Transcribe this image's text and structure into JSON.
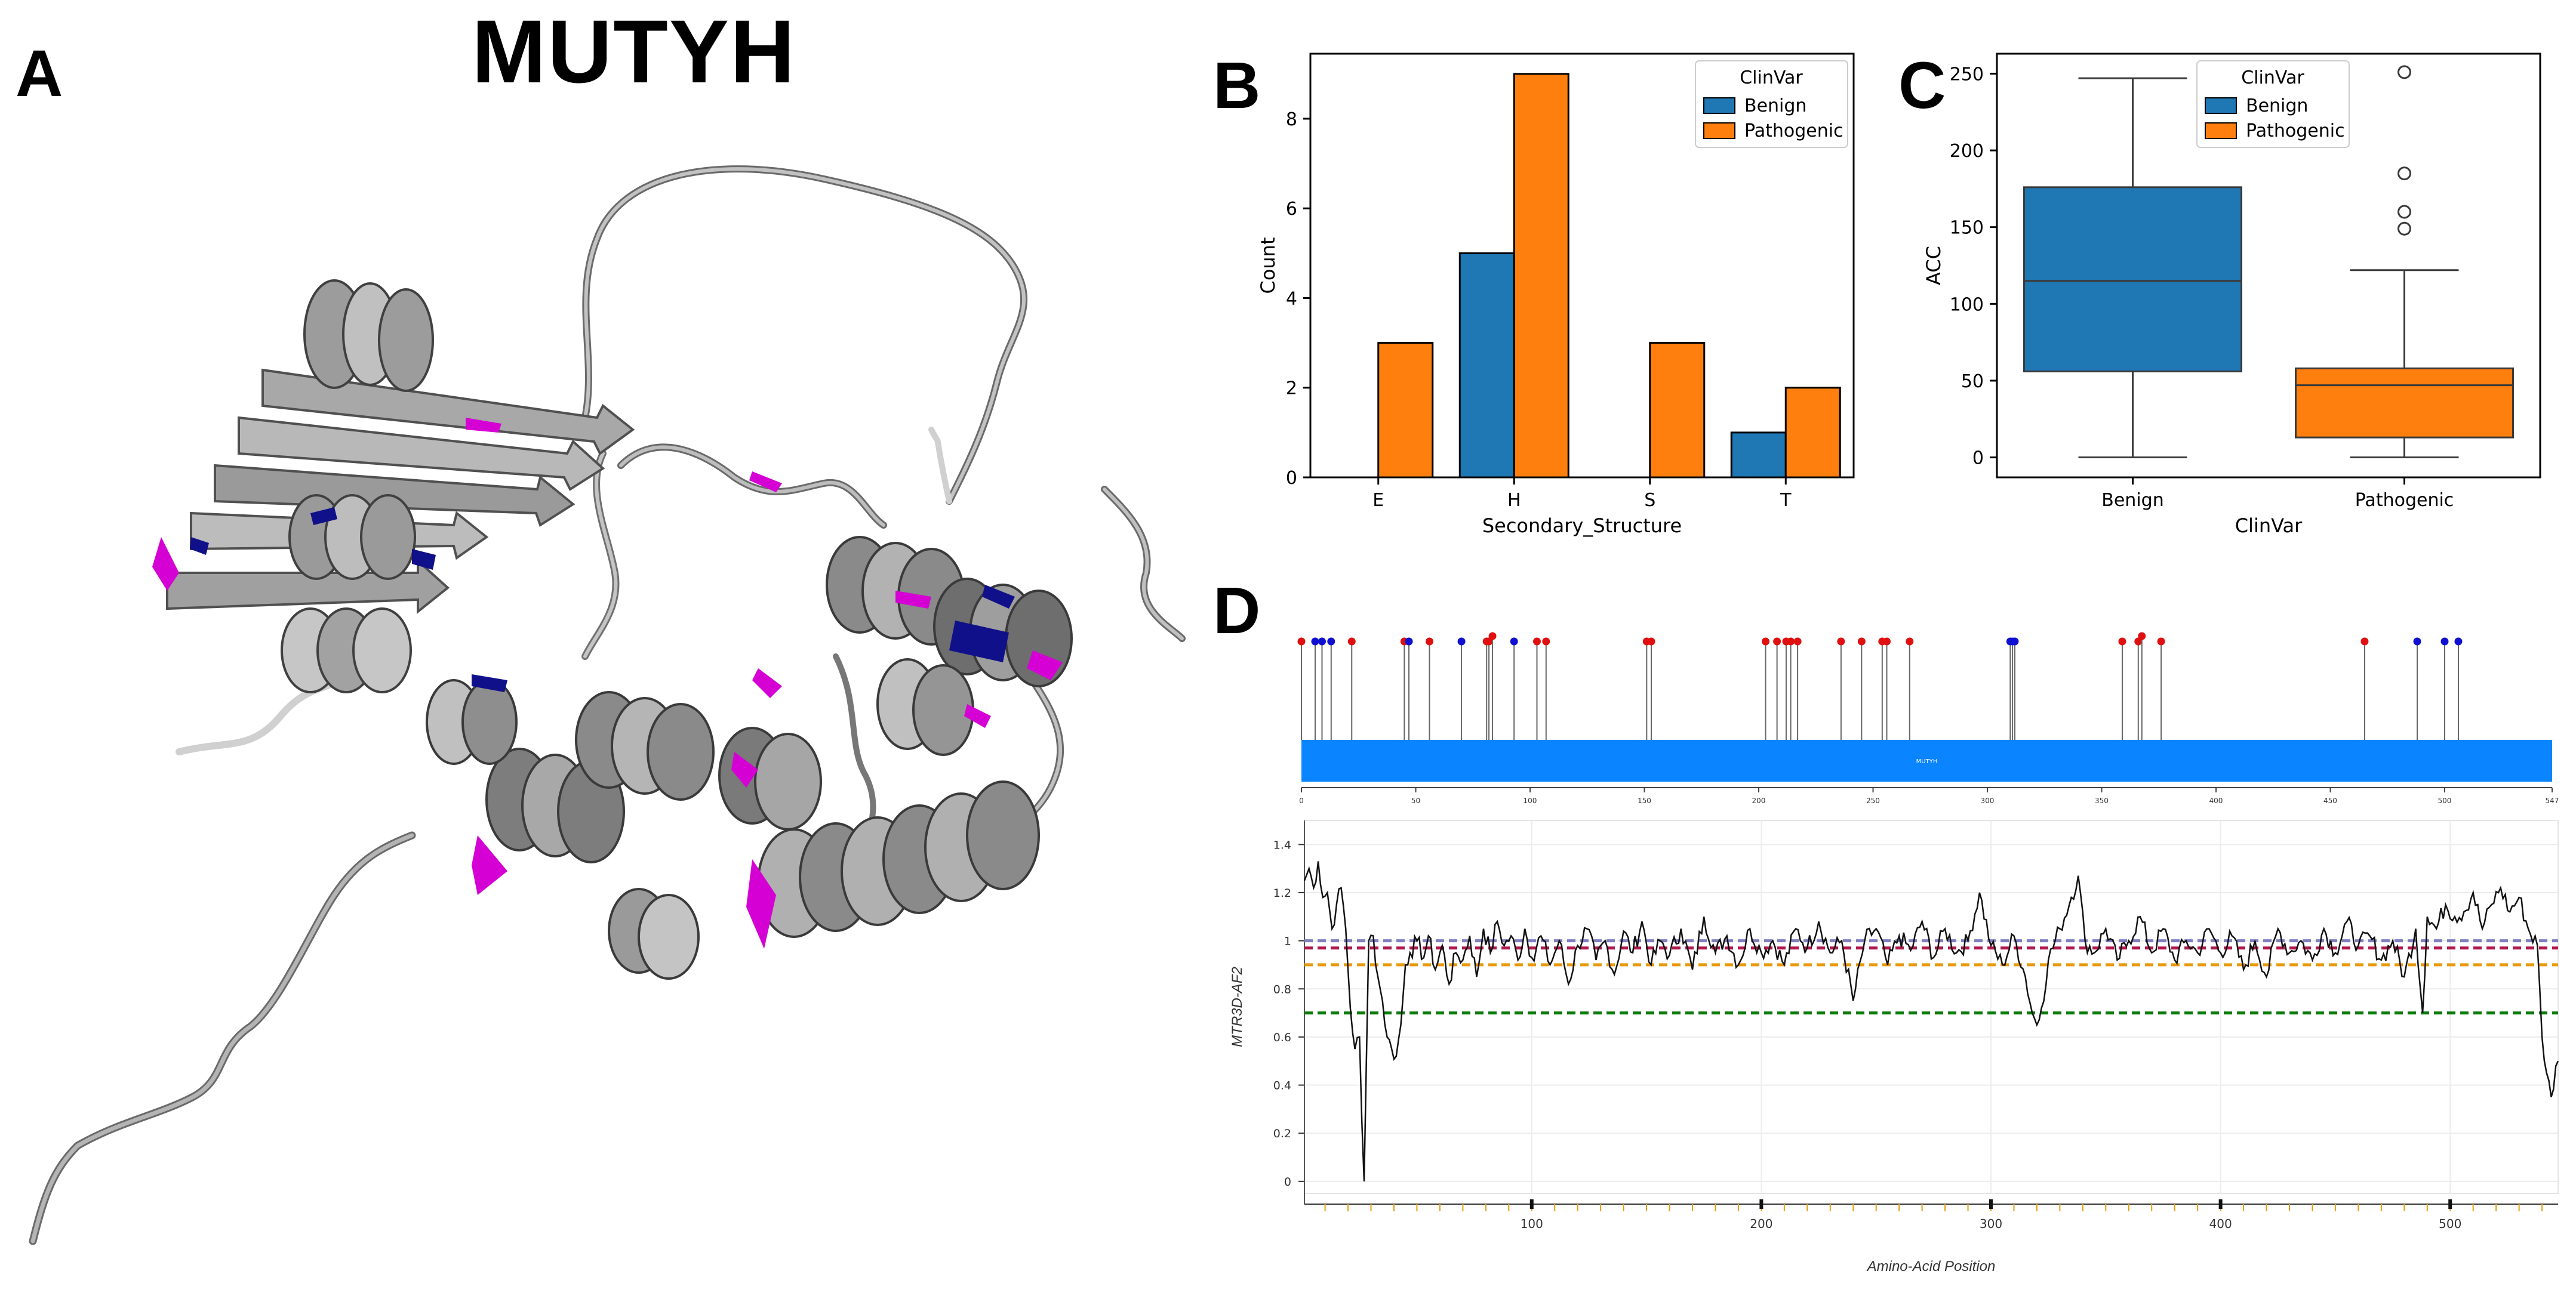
{
  "panel_labels": {
    "a": "A",
    "b": "B",
    "c": "C",
    "d": "D"
  },
  "protein": {
    "title": "MUTYH"
  },
  "colors": {
    "benign": "#1f77b4",
    "pathogenic": "#ff7f0e",
    "lollipop_benign": "#1010d0",
    "lollipop_pathogenic": "#e01010",
    "domain_bar": "#0a84ff",
    "highlight_pathogenic": "#d400d4",
    "highlight_benign": "#10108a"
  },
  "chart_data": [
    {
      "id": "B",
      "type": "bar",
      "title": "",
      "xlabel": "Secondary_Structure",
      "ylabel": "Count",
      "categories": [
        "E",
        "H",
        "S",
        "T"
      ],
      "series": [
        {
          "name": "Benign",
          "values": [
            0,
            5,
            0,
            1
          ]
        },
        {
          "name": "Pathogenic",
          "values": [
            3,
            9,
            3,
            2
          ]
        }
      ],
      "ylim": [
        0,
        9.45
      ],
      "yticks": [
        "0",
        "2",
        "4",
        "6",
        "8"
      ],
      "legend": {
        "title": "ClinVar",
        "position": "top-right"
      }
    },
    {
      "id": "C",
      "type": "box",
      "title": "",
      "xlabel": "ClinVar",
      "ylabel": "ACC",
      "categories": [
        "Benign",
        "Pathogenic"
      ],
      "boxes": [
        {
          "name": "Benign",
          "whisker_low": 0,
          "q1": 56,
          "median": 115,
          "q3": 176,
          "whisker_high": 247,
          "outliers": []
        },
        {
          "name": "Pathogenic",
          "whisker_low": 0,
          "q1": 13,
          "median": 47,
          "q3": 58,
          "whisker_high": 122,
          "outliers": [
            149,
            160,
            185,
            251
          ]
        }
      ],
      "ylim": [
        -13,
        263
      ],
      "yticks": [
        "0",
        "50",
        "100",
        "150",
        "200",
        "250"
      ],
      "legend": {
        "title": "ClinVar",
        "entries": [
          "Benign",
          "Pathogenic"
        ],
        "position": "top-center"
      }
    },
    {
      "id": "D-top",
      "type": "lollipop",
      "xlim": [
        0,
        547
      ],
      "xticks": [
        "0",
        "50",
        "100",
        "150",
        "200",
        "250",
        "300",
        "350",
        "400",
        "450",
        "500",
        "547"
      ],
      "domain_label": "MUTYH",
      "benign_positions": [
        6,
        9,
        13,
        47,
        70,
        93,
        310,
        311,
        312,
        488,
        500,
        506
      ],
      "pathogenic_positions": [
        0,
        22,
        45,
        56,
        81,
        82,
        82,
        103,
        107,
        151,
        153,
        203,
        208,
        212,
        214,
        217,
        236,
        245,
        254,
        256,
        266,
        359,
        366,
        366,
        376,
        465
      ]
    },
    {
      "id": "D-bottom",
      "type": "line",
      "xlabel": "Amino-Acid Position",
      "ylabel": "MTR3D-AF2",
      "xlim": [
        1,
        547
      ],
      "ylim": [
        -0.05,
        1.5
      ],
      "xticks": [
        "100",
        "200",
        "300",
        "400",
        "500"
      ],
      "yticks": [
        "0",
        "0.2",
        "0.4",
        "0.6",
        "0.8",
        "1",
        "1.2",
        "1.4"
      ],
      "hlines": [
        {
          "y": 1.0,
          "color": "#8080c0"
        },
        {
          "y": 0.97,
          "color": "#b0184a"
        },
        {
          "y": 0.9,
          "color": "#e69a0c"
        },
        {
          "y": 0.7,
          "color": "#0a7a0a"
        }
      ],
      "keypoints": [
        [
          1,
          1.25
        ],
        [
          3,
          1.3
        ],
        [
          5,
          1.22
        ],
        [
          7,
          1.33
        ],
        [
          9,
          1.18
        ],
        [
          11,
          1.2
        ],
        [
          13,
          1.05
        ],
        [
          15,
          1.15
        ],
        [
          17,
          1.22
        ],
        [
          19,
          1.05
        ],
        [
          21,
          0.72
        ],
        [
          23,
          0.55
        ],
        [
          25,
          0.6
        ],
        [
          26,
          0.25
        ],
        [
          27,
          0.0
        ],
        [
          28,
          0.5
        ],
        [
          29,
          1.0
        ],
        [
          31,
          1.02
        ],
        [
          33,
          0.85
        ],
        [
          35,
          0.75
        ],
        [
          37,
          0.6
        ],
        [
          39,
          0.55
        ],
        [
          41,
          0.52
        ],
        [
          43,
          0.65
        ],
        [
          45,
          0.9
        ],
        [
          47,
          0.95
        ],
        [
          50,
          1.0
        ],
        [
          53,
          0.93
        ],
        [
          55,
          1.02
        ],
        [
          58,
          0.88
        ],
        [
          61,
          0.98
        ],
        [
          64,
          0.82
        ],
        [
          67,
          0.95
        ],
        [
          70,
          0.92
        ],
        [
          73,
          1.02
        ],
        [
          76,
          0.85
        ],
        [
          79,
          1.05
        ],
        [
          82,
          0.95
        ],
        [
          85,
          1.08
        ],
        [
          88,
          0.98
        ],
        [
          91,
          1.02
        ],
        [
          94,
          0.92
        ],
        [
          97,
          1.05
        ],
        [
          100,
          0.93
        ],
        [
          104,
          1.02
        ],
        [
          108,
          0.9
        ],
        [
          112,
          1.0
        ],
        [
          116,
          0.82
        ],
        [
          120,
          0.98
        ],
        [
          124,
          1.05
        ],
        [
          128,
          0.92
        ],
        [
          132,
          1.0
        ],
        [
          136,
          0.86
        ],
        [
          140,
          1.04
        ],
        [
          144,
          0.95
        ],
        [
          148,
          1.08
        ],
        [
          152,
          0.9
        ],
        [
          156,
          1.0
        ],
        [
          160,
          0.94
        ],
        [
          165,
          1.05
        ],
        [
          170,
          0.88
        ],
        [
          175,
          1.1
        ],
        [
          180,
          0.95
        ],
        [
          185,
          1.02
        ],
        [
          190,
          0.9
        ],
        [
          195,
          1.05
        ],
        [
          200,
          0.95
        ],
        [
          205,
          1.0
        ],
        [
          210,
          0.9
        ],
        [
          215,
          1.05
        ],
        [
          220,
          0.97
        ],
        [
          225,
          1.08
        ],
        [
          230,
          0.95
        ],
        [
          235,
          1.0
        ],
        [
          240,
          0.75
        ],
        [
          245,
          1.0
        ],
        [
          250,
          1.05
        ],
        [
          255,
          0.9
        ],
        [
          260,
          1.02
        ],
        [
          265,
          0.96
        ],
        [
          270,
          1.08
        ],
        [
          275,
          0.93
        ],
        [
          280,
          1.05
        ],
        [
          285,
          0.95
        ],
        [
          290,
          1.0
        ],
        [
          295,
          1.2
        ],
        [
          300,
          0.98
        ],
        [
          305,
          0.9
        ],
        [
          310,
          1.02
        ],
        [
          315,
          0.85
        ],
        [
          318,
          0.7
        ],
        [
          320,
          0.65
        ],
        [
          322,
          0.72
        ],
        [
          325,
          0.92
        ],
        [
          330,
          1.05
        ],
        [
          335,
          1.18
        ],
        [
          338,
          1.27
        ],
        [
          341,
          1.0
        ],
        [
          345,
          0.95
        ],
        [
          350,
          1.05
        ],
        [
          355,
          0.92
        ],
        [
          360,
          1.0
        ],
        [
          365,
          1.1
        ],
        [
          370,
          0.95
        ],
        [
          375,
          1.05
        ],
        [
          380,
          0.92
        ],
        [
          385,
          1.0
        ],
        [
          390,
          0.95
        ],
        [
          395,
          1.05
        ],
        [
          400,
          0.95
        ],
        [
          405,
          1.02
        ],
        [
          410,
          0.88
        ],
        [
          415,
          1.0
        ],
        [
          420,
          0.85
        ],
        [
          425,
          1.05
        ],
        [
          430,
          0.95
        ],
        [
          435,
          1.0
        ],
        [
          440,
          0.92
        ],
        [
          445,
          1.05
        ],
        [
          450,
          0.95
        ],
        [
          455,
          1.08
        ],
        [
          460,
          0.98
        ],
        [
          465,
          1.02
        ],
        [
          470,
          0.92
        ],
        [
          475,
          1.0
        ],
        [
          480,
          0.85
        ],
        [
          485,
          1.05
        ],
        [
          488,
          0.7
        ],
        [
          490,
          1.1
        ],
        [
          494,
          1.05
        ],
        [
          498,
          1.15
        ],
        [
          502,
          1.1
        ],
        [
          506,
          1.12
        ],
        [
          510,
          1.2
        ],
        [
          514,
          1.05
        ],
        [
          518,
          1.15
        ],
        [
          522,
          1.22
        ],
        [
          526,
          1.12
        ],
        [
          530,
          1.18
        ],
        [
          534,
          1.05
        ],
        [
          538,
          0.98
        ],
        [
          540,
          0.6
        ],
        [
          542,
          0.45
        ],
        [
          544,
          0.35
        ],
        [
          546,
          0.48
        ],
        [
          547,
          0.5
        ]
      ]
    }
  ]
}
